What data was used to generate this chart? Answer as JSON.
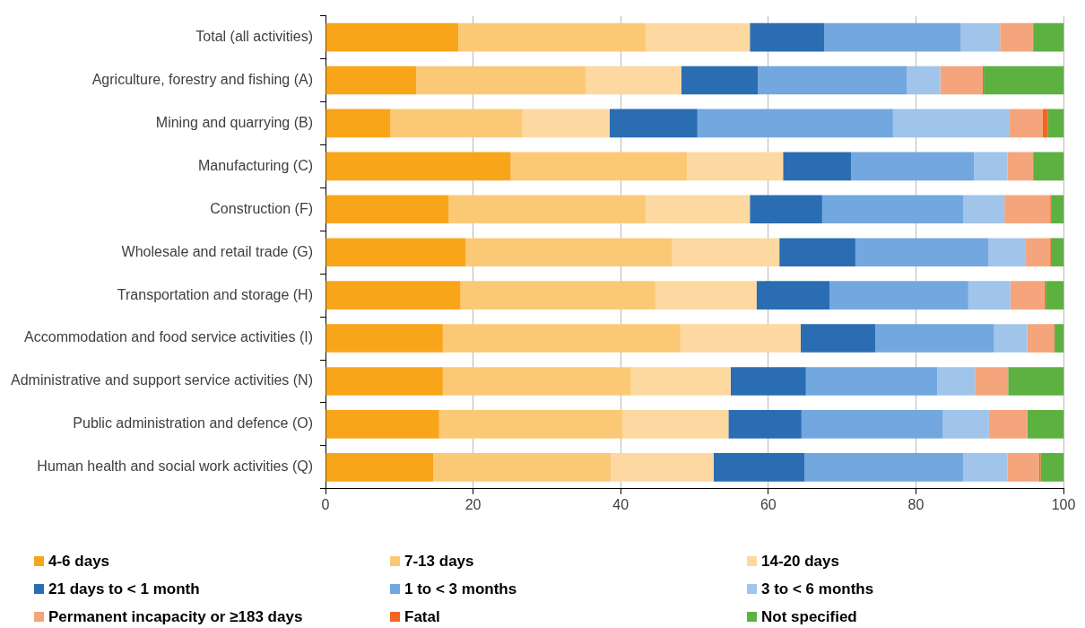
{
  "chart_data": {
    "type": "bar",
    "orientation": "horizontal",
    "stacked": true,
    "categories": [
      "Total (all activities)",
      "Agriculture, forestry and fishing (A)",
      "Mining and quarrying (B)",
      "Manufacturing (C)",
      "Construction (F)",
      "Wholesale and retail trade (G)",
      "Transportation and storage (H)",
      "Accommodation and food service activities (I)",
      "Administrative and support service activities (N)",
      "Public administration and defence (O)",
      "Human health and social work activities (Q)"
    ],
    "series": [
      {
        "name": "4-6 days",
        "color": "#f9a51a",
        "values": [
          18.0,
          12.3,
          8.8,
          25.1,
          16.7,
          19.0,
          18.3,
          15.9,
          15.9,
          15.4,
          14.6
        ]
      },
      {
        "name": "7-13 days",
        "color": "#fbc976",
        "values": [
          25.4,
          23.0,
          17.9,
          23.9,
          26.7,
          27.9,
          26.4,
          32.2,
          25.5,
          24.9,
          24.1
        ]
      },
      {
        "name": "14-20 days",
        "color": "#fdd9a1",
        "values": [
          14.1,
          12.9,
          11.8,
          13.0,
          14.1,
          14.6,
          13.7,
          16.3,
          13.5,
          14.3,
          13.9
        ]
      },
      {
        "name": "21 days to < 1 month",
        "color": "#2a6db3",
        "values": [
          10.1,
          10.4,
          11.9,
          9.2,
          9.8,
          10.3,
          9.9,
          10.1,
          10.2,
          9.9,
          12.3
        ]
      },
      {
        "name": "1 to < 3 months",
        "color": "#73a7df",
        "values": [
          18.5,
          20.2,
          26.5,
          16.7,
          19.1,
          18.0,
          18.8,
          16.1,
          17.8,
          19.1,
          21.5
        ]
      },
      {
        "name": "3 to < 6 months",
        "color": "#a0c4ea",
        "values": [
          5.3,
          4.5,
          15.8,
          4.5,
          5.6,
          5.0,
          5.7,
          4.5,
          5.1,
          6.3,
          6.0
        ]
      },
      {
        "name": "Permanent incapacity or ≥183 days",
        "color": "#f4a57c",
        "values": [
          4.4,
          5.7,
          4.5,
          3.4,
          6.2,
          3.4,
          4.6,
          3.6,
          4.5,
          5.2,
          4.3
        ]
      },
      {
        "name": "Fatal",
        "color": "#f26522",
        "values": [
          0.1,
          0.2,
          0.7,
          0.1,
          0.2,
          0.1,
          0.2,
          0.1,
          0.0,
          0.0,
          0.2
        ]
      },
      {
        "name": "Not specified",
        "color": "#5db141",
        "values": [
          4.1,
          10.8,
          2.1,
          4.1,
          1.6,
          1.7,
          2.4,
          1.2,
          7.5,
          4.9,
          3.1
        ]
      }
    ],
    "xlim": [
      0,
      100
    ],
    "xticks": [
      0,
      20,
      40,
      60,
      80,
      100
    ],
    "grid": "x",
    "legend": "bottom"
  }
}
